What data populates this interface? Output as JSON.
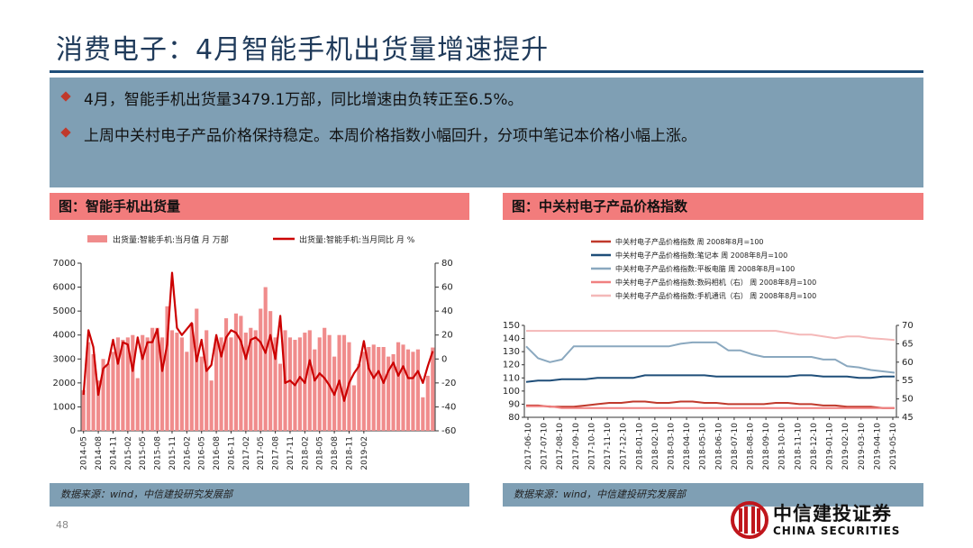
{
  "page_title": "消费电子：4月智能手机出货量增速提升",
  "bullets": [
    "4月，智能手机出货量3479.1万部，同比增速由负转正至6.5%。",
    "上周中关村电子产品价格保持稳定。本周价格指数小幅回升，分项中笔记本价格小幅上涨。"
  ],
  "left_panel": {
    "title": "图：智能手机出货量",
    "source": "数据来源：wind，中信建投研究发展部"
  },
  "right_panel": {
    "title": "图：中关村电子产品价格指数",
    "source": "数据来源：wind，中信建投研究发展部"
  },
  "page_number": "48",
  "logo": {
    "cn": "中信建投证券",
    "en": "CHINA SECURITIES"
  },
  "colors": {
    "accent_red": "#cc0000",
    "bar_pink": "#f08c8c",
    "summary_bg": "#7f9fb4",
    "title_blue": "#1f3a5a"
  },
  "chart_data": [
    {
      "type": "bar",
      "series": [
        {
          "name": "出货量:智能手机:当月值 月 万部",
          "type": "bar",
          "axis": "left",
          "color": "#f08c8c",
          "values": [
            1700,
            3700,
            3200,
            2100,
            3000,
            2800,
            3300,
            3900,
            3800,
            3900,
            4000,
            2200,
            4000,
            3900,
            4300,
            4300,
            3900,
            5200,
            4200,
            4100,
            3900,
            3300,
            4500,
            5100,
            3100,
            4200,
            2100,
            3800,
            3900,
            4700,
            3900,
            4900,
            4800,
            4100,
            4300,
            4200,
            5100,
            6000,
            5000,
            3900,
            2800,
            4200,
            3900,
            3800,
            3900,
            4100,
            4200,
            3400,
            3900,
            4300,
            4000,
            3100,
            4000,
            4000,
            3700,
            1900,
            2800,
            3300,
            3500,
            3600,
            3500,
            3500,
            3100,
            3200,
            3700,
            3600,
            3400,
            3300,
            3400,
            1400,
            2300,
            3479
          ]
        },
        {
          "name": "出货量:智能手机:当月同比 月 %",
          "type": "line",
          "axis": "right",
          "color": "#cc0000",
          "values": [
            -30,
            24,
            10,
            -30,
            -8,
            -4,
            16,
            -4,
            14,
            12,
            -10,
            18,
            0,
            14,
            14,
            25,
            -10,
            12,
            72,
            26,
            20,
            25,
            30,
            -2,
            16,
            -10,
            -5,
            20,
            2,
            18,
            24,
            22,
            15,
            0,
            16,
            18,
            14,
            5,
            20,
            0,
            36,
            -20,
            -18,
            -22,
            -15,
            -20,
            -1,
            -18,
            -12,
            -16,
            -22,
            -30,
            -18,
            -35,
            -20,
            -12,
            -6,
            15,
            -8,
            -16,
            -10,
            -20,
            -10,
            -3,
            -14,
            -6,
            -16,
            -16,
            -10,
            -20,
            -6,
            6.5
          ]
        }
      ],
      "x_tick_labels": [
        "2014-05",
        "2014-08",
        "2014-11",
        "2015-02",
        "2015-05",
        "2015-08",
        "2015-11",
        "2016-02",
        "2016-05",
        "2016-08",
        "2016-11",
        "2017-02",
        "2017-05",
        "2017-08",
        "2017-11",
        "2018-02",
        "2018-05",
        "2018-08",
        "2018-11",
        "2019-02"
      ],
      "y_left": {
        "min": 0,
        "max": 7000,
        "ticks": [
          0,
          1000,
          2000,
          3000,
          4000,
          5000,
          6000,
          7000
        ]
      },
      "y_right": {
        "min": -60,
        "max": 80,
        "ticks": [
          -60,
          -40,
          -20,
          0,
          20,
          40,
          60,
          80
        ]
      },
      "legend_position": "top"
    },
    {
      "type": "line",
      "series": [
        {
          "name": "中关村电子产品价格指数 周 2008年8月=100",
          "axis": "left",
          "color": "#c0392b",
          "values": [
            89,
            89,
            88,
            88,
            88,
            89,
            90,
            91,
            91,
            92,
            92,
            91,
            91,
            92,
            92,
            91,
            91,
            90,
            90,
            90,
            90,
            91,
            91,
            90,
            90,
            89,
            89,
            88,
            88,
            88,
            87,
            87
          ]
        },
        {
          "name": "中关村电子产品价格指数:笔记本 周 2008年8月=100",
          "axis": "left",
          "color": "#1f4e79",
          "values": [
            107,
            108,
            108,
            109,
            109,
            109,
            110,
            110,
            110,
            110,
            112,
            112,
            112,
            112,
            112,
            112,
            111,
            111,
            111,
            111,
            111,
            111,
            111,
            112,
            112,
            111,
            111,
            111,
            110,
            110,
            111,
            111
          ]
        },
        {
          "name": "中关村电子产品价格指数:平板电脑 周 2008年8月=100",
          "axis": "left",
          "color": "#8aa8bf",
          "values": [
            134,
            125,
            122,
            124,
            134,
            134,
            134,
            134,
            134,
            134,
            134,
            134,
            134,
            136,
            137,
            137,
            137,
            131,
            131,
            128,
            126,
            126,
            126,
            126,
            126,
            124,
            124,
            119,
            118,
            116,
            115,
            114
          ]
        },
        {
          "name": "中关村电子产品价格指数:数码相机（右） 周 2008年8月=100",
          "axis": "right",
          "color": "#f08080",
          "values": [
            48,
            48,
            48,
            47.5,
            47.5,
            47.5,
            47.5,
            47.5,
            47.5,
            47.5,
            47.5,
            47.5,
            47.5,
            47.5,
            47.5,
            47.5,
            47.5,
            47.5,
            47.5,
            47.5,
            47.5,
            47.5,
            47.5,
            47.5,
            47.5,
            47.5,
            47.5,
            47.5,
            47.5,
            47.5,
            47.5,
            47.5
          ]
        },
        {
          "name": "中关村电子产品价格指数:手机通讯（右） 周 2008年8月=100",
          "axis": "right",
          "color": "#f4b8b8",
          "values": [
            68.5,
            68.5,
            68.5,
            68.5,
            68.5,
            68.5,
            68.5,
            68.5,
            68.5,
            68.5,
            68.5,
            68.5,
            68.5,
            68.5,
            68.5,
            68.5,
            68.5,
            68.5,
            68.5,
            68.5,
            68.5,
            68.5,
            68,
            67.5,
            67.5,
            67,
            66.5,
            67,
            67,
            66.5,
            66.3,
            66
          ]
        }
      ],
      "x_tick_labels": [
        "2017-06-10",
        "2017-07-10",
        "2017-08-10",
        "2017-09-10",
        "2017-10-10",
        "2017-11-10",
        "2017-12-10",
        "2018-01-10",
        "2018-02-10",
        "2018-03-10",
        "2018-04-10",
        "2018-05-10",
        "2018-06-10",
        "2018-07-10",
        "2018-08-10",
        "2018-09-10",
        "2018-10-10",
        "2018-11-10",
        "2018-12-10",
        "2019-01-10",
        "2019-02-10",
        "2019-03-10",
        "2019-04-10",
        "2019-05-10"
      ],
      "y_left": {
        "min": 80,
        "max": 150,
        "ticks": [
          80,
          90,
          100,
          110,
          120,
          130,
          140,
          150
        ]
      },
      "y_right": {
        "min": 45,
        "max": 70,
        "ticks": [
          45,
          50,
          55,
          60,
          65,
          70
        ]
      },
      "legend_position": "top"
    }
  ]
}
